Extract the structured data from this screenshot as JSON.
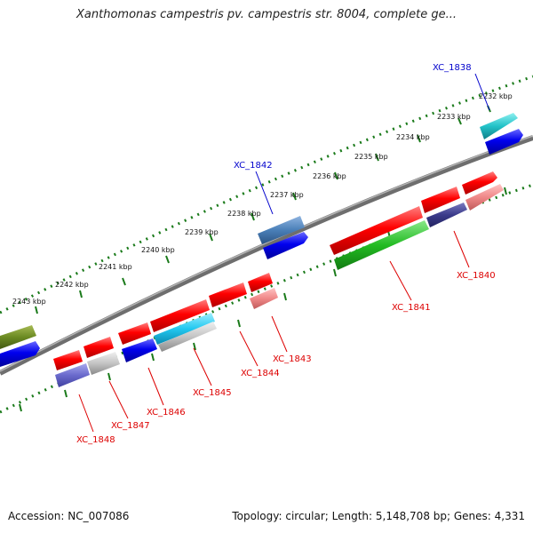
{
  "title": "Xanthomonas campestris pv. campestris str. 8004, complete ge...",
  "footer": {
    "accession": "Accession: NC_007086",
    "summary": "Topology: circular; Length: 5,148,708 bp; Genes: 4,331"
  },
  "colors": {
    "backbone": "#7f7f7f",
    "ruler": "#1a7a1a",
    "label_forward": "#0000cc",
    "label_reverse": "#dd0000"
  },
  "ruler_ticks": [
    "2232 kbp",
    "2233 kbp",
    "2234 kbp",
    "2235 kbp",
    "2236 kbp",
    "2237 kbp",
    "2238 kbp",
    "2239 kbp",
    "2240 kbp",
    "2241 kbp",
    "2242 kbp",
    "2243 kbp"
  ],
  "gene_labels": {
    "forward": [
      "XC_1838",
      "XC_1842"
    ],
    "reverse": [
      "XC_1840",
      "XC_1841",
      "XC_1843",
      "XC_1844",
      "XC_1845",
      "XC_1846",
      "XC_1847",
      "XC_1848"
    ]
  }
}
